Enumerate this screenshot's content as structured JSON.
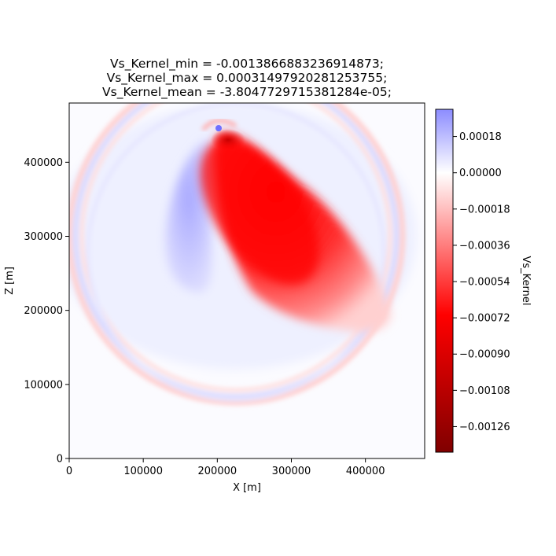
{
  "chart_data": {
    "type": "heatmap",
    "title_lines": [
      "Vs_Kernel_min = -0.0013866883236914873;",
      "Vs_Kernel_max = 0.00031497920281253755;",
      "Vs_Kernel_mean = -3.8047729715381284e-05;"
    ],
    "xlabel": "X [m]",
    "ylabel": "Z [m]",
    "xlim": [
      0,
      480000
    ],
    "ylim": [
      0,
      480000
    ],
    "x_ticks": [
      0,
      100000,
      200000,
      300000,
      400000
    ],
    "y_ticks": [
      0,
      100000,
      200000,
      300000,
      400000
    ],
    "x_tick_labels": [
      "0",
      "100000",
      "200000",
      "300000",
      "400000"
    ],
    "y_tick_labels": [
      "0",
      "100000",
      "200000",
      "300000",
      "400000"
    ],
    "colormap": "seismic",
    "colorbar": {
      "label": "Vs_Kernel",
      "range": [
        -0.001387,
        0.000315
      ],
      "ticks": [
        0.00018,
        0.0,
        -0.00018,
        -0.00036,
        -0.00054,
        -0.00072,
        -0.0009,
        -0.00108,
        -0.00126
      ],
      "tick_labels": [
        "0.00018",
        "0.00000",
        "−0.00018",
        "−0.00036",
        "−0.00054",
        "−0.00072",
        "−0.00090",
        "−0.00108",
        "−0.00126"
      ],
      "colors": {
        "top": "#8c8cff",
        "center": "#ffffff",
        "mid_negative": "#ff0000",
        "bottom": "#800000"
      }
    },
    "features": [
      {
        "name": "negative-lobe",
        "x": 300000,
        "z": 290000,
        "value": -0.0011
      },
      {
        "name": "positive-lobe",
        "x": 175000,
        "z": 320000,
        "value": 0.0001
      },
      {
        "name": "source-cap",
        "x": 205000,
        "z": 445000,
        "value": -0.0013
      },
      {
        "name": "outer-ring",
        "x": 240000,
        "z": 240000,
        "value": 5e-05
      }
    ]
  }
}
